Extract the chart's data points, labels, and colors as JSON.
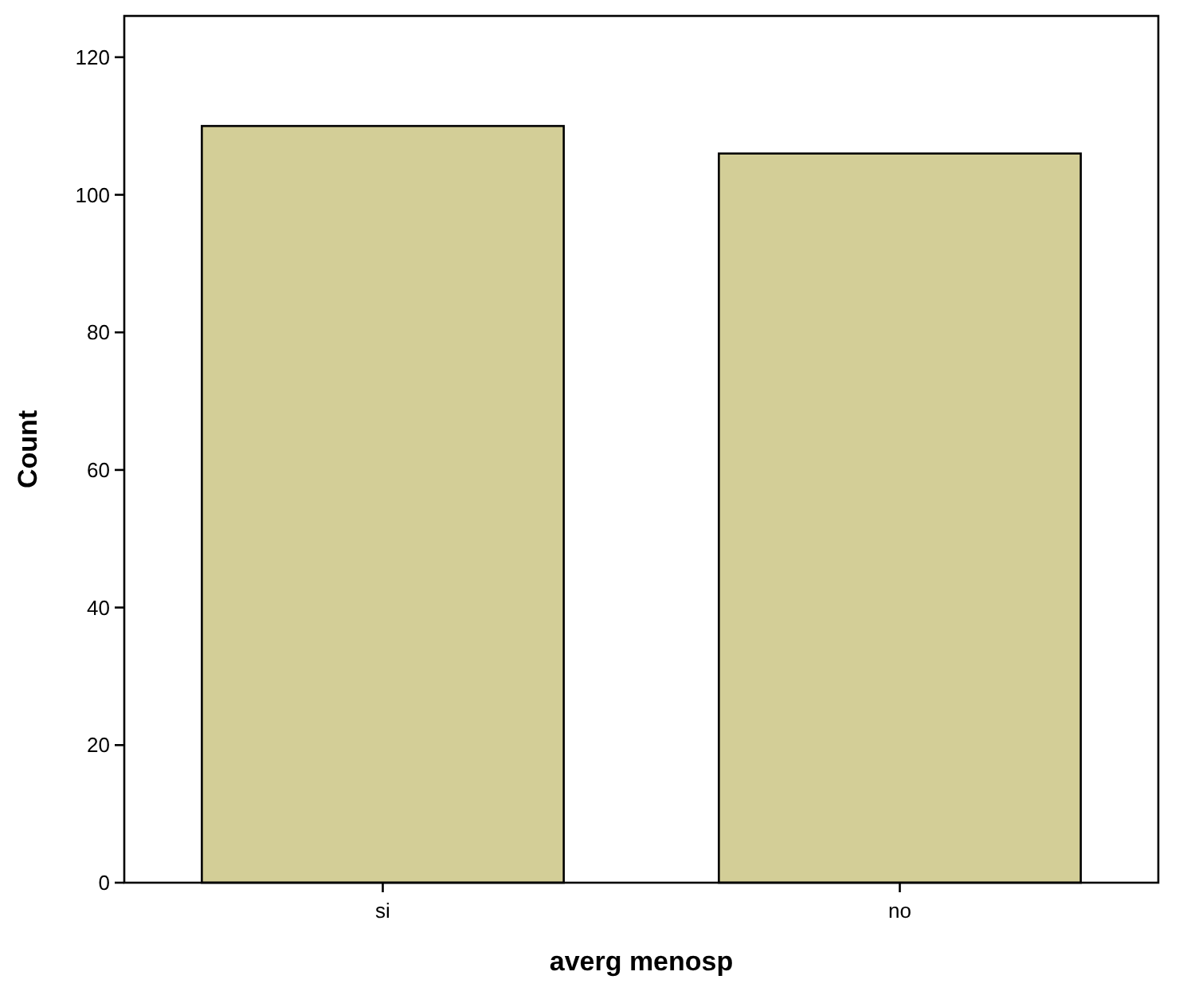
{
  "chart_data": {
    "type": "bar",
    "xlabel": "averg menosp",
    "ylabel": "Count",
    "categories": [
      "si",
      "no"
    ],
    "values": [
      110,
      106
    ],
    "color": "#d3ce97",
    "ylim": [
      0,
      126
    ],
    "yticks": [
      0,
      20,
      40,
      60,
      80,
      100,
      120
    ],
    "grid": false
  }
}
